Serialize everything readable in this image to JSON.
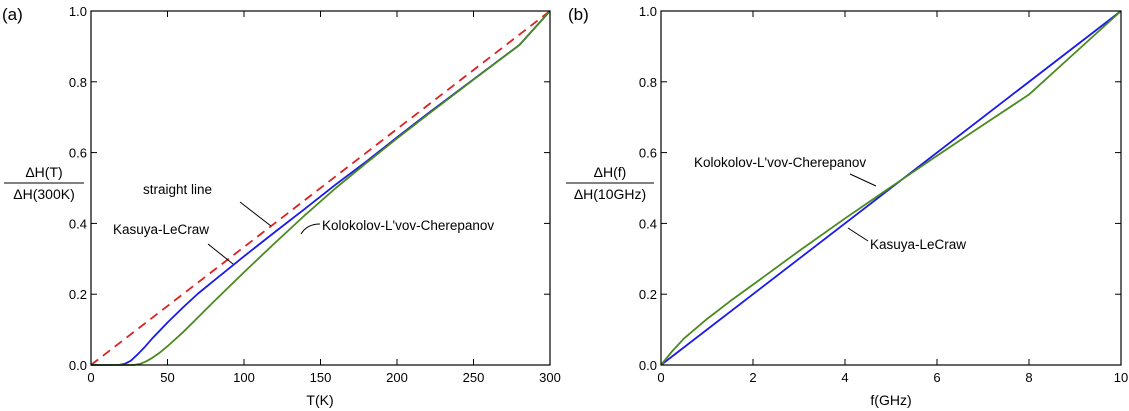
{
  "chart_data": [
    {
      "panel_label": "(a)",
      "type": "line",
      "xlabel": "T(K)",
      "ylabel_top": "ΔH(T)",
      "ylabel_bottom": "ΔH(300K)",
      "xlim": [
        0,
        300
      ],
      "ylim": [
        0,
        1.0
      ],
      "xticks": [
        "0",
        "50",
        "100",
        "150",
        "200",
        "250",
        "300"
      ],
      "yticks": [
        "0.0",
        "0.2",
        "0.4",
        "0.6",
        "0.8",
        "1.0"
      ],
      "grid": false,
      "series": [
        {
          "name": "straight line",
          "color": "#dd2222",
          "dashed": true,
          "x": [
            0,
            300
          ],
          "y": [
            0,
            1.0
          ]
        },
        {
          "name": "Kasuya-LeCraw",
          "color": "#1a1aee",
          "dashed": false,
          "x": [
            0,
            18,
            22,
            26,
            30,
            35,
            40,
            50,
            60,
            70,
            80,
            90,
            100,
            120,
            140,
            160,
            180,
            200,
            220,
            250,
            280,
            300
          ],
          "y": [
            0,
            0,
            0.003,
            0.012,
            0.028,
            0.05,
            0.075,
            0.12,
            0.162,
            0.202,
            0.237,
            0.272,
            0.307,
            0.375,
            0.442,
            0.51,
            0.575,
            0.643,
            0.71,
            0.807,
            0.904,
            1.0
          ]
        },
        {
          "name": "Kolokolov-L'vov-Cherepanov",
          "color": "#4a8a1e",
          "dashed": false,
          "x": [
            0,
            28,
            32,
            36,
            40,
            45,
            50,
            60,
            70,
            80,
            90,
            100,
            120,
            140,
            160,
            180,
            200,
            220,
            250,
            280,
            300
          ],
          "y": [
            0,
            0,
            0.003,
            0.01,
            0.02,
            0.035,
            0.053,
            0.092,
            0.135,
            0.178,
            0.22,
            0.262,
            0.344,
            0.424,
            0.5,
            0.571,
            0.64,
            0.707,
            0.806,
            0.904,
            1.0
          ]
        }
      ],
      "annotations": [
        {
          "text": "straight line",
          "target": "straight line",
          "x": 118,
          "y": 0.397
        },
        {
          "text": "Kasuya-LeCraw",
          "target": "Kasuya-LeCraw",
          "x": 92,
          "y": 0.29
        },
        {
          "text": "Kolokolov-L'vov-Cherepanov",
          "target": "Kolokolov-L'vov-Cherepanov",
          "x": 137,
          "y": 0.38
        }
      ]
    },
    {
      "panel_label": "(b)",
      "type": "line",
      "xlabel": "f(GHz)",
      "ylabel_top": "ΔH(f)",
      "ylabel_bottom": "ΔH(10GHz)",
      "xlim": [
        0,
        10
      ],
      "ylim": [
        0,
        1.0
      ],
      "xticks": [
        "0",
        "2",
        "4",
        "6",
        "8",
        "10"
      ],
      "yticks": [
        "0.0",
        "0.2",
        "0.4",
        "0.6",
        "0.8",
        "1.0"
      ],
      "grid": false,
      "series": [
        {
          "name": "Kasuya-LeCraw",
          "color": "#1a1aee",
          "dashed": false,
          "x": [
            0,
            10
          ],
          "y": [
            0,
            1.0
          ]
        },
        {
          "name": "Kolokolov-L'vov-Cherepanov",
          "color": "#4a8a1e",
          "dashed": false,
          "x": [
            0,
            0.25,
            0.5,
            1,
            1.5,
            2,
            3,
            4,
            5,
            6,
            7,
            8,
            9,
            10
          ],
          "y": [
            0,
            0.04,
            0.075,
            0.13,
            0.18,
            0.227,
            0.322,
            0.414,
            0.503,
            0.591,
            0.678,
            0.764,
            0.882,
            1.0
          ]
        }
      ],
      "annotations": [
        {
          "text": "Kolokolov-L'vov-Cherepanov",
          "target": "Kolokolov-L'vov-Cherepanov",
          "x": 4.75,
          "y": 0.503
        },
        {
          "text": "Kasuya-LeCraw",
          "target": "Kasuya-LeCraw",
          "x": 4.3,
          "y": 0.43
        }
      ]
    }
  ]
}
